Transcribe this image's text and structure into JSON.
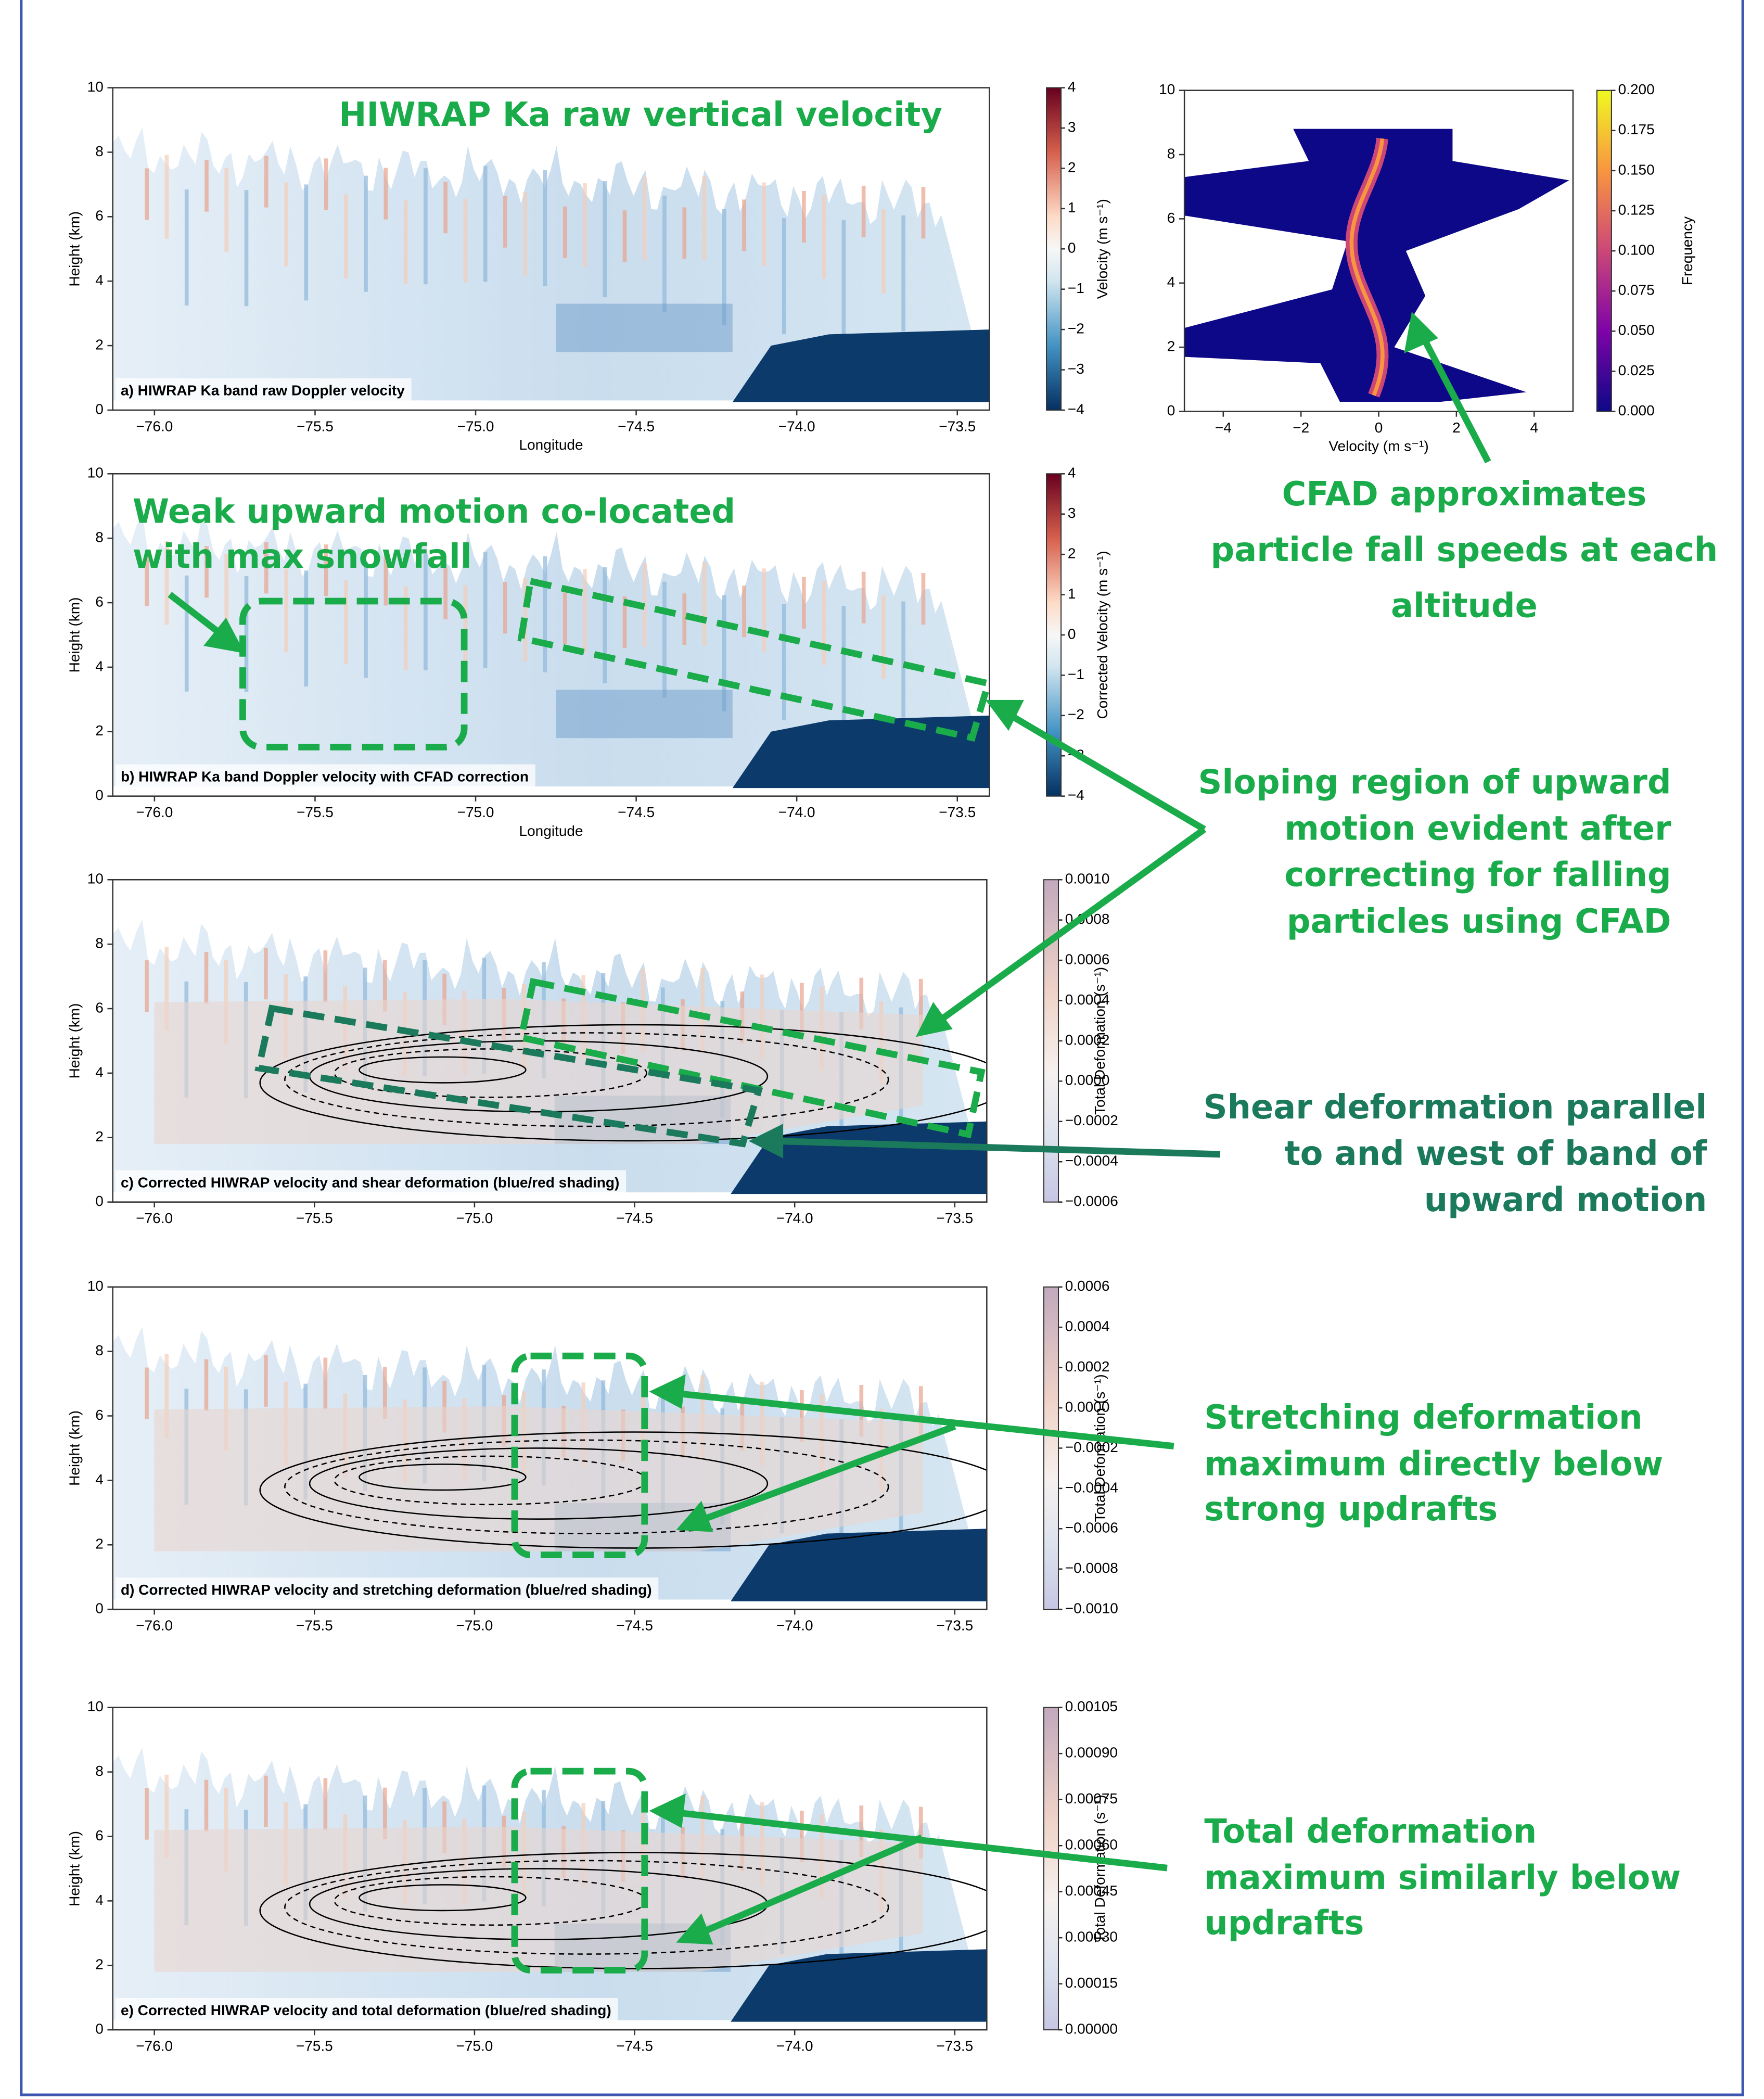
{
  "chart_data": [
    {
      "type": "image",
      "panel_label": "a) HIWRAP Ka band raw Doppler velocity",
      "x_label": "Longitude",
      "y_label": "Height (km)",
      "xlim": [
        -76.13,
        -73.4
      ],
      "xticks": [
        {
          "value": -76,
          "label": "−76.0"
        },
        {
          "value": -75.5,
          "label": "−75.5"
        },
        {
          "value": -75,
          "label": "−75.0"
        },
        {
          "value": -74.5,
          "label": "−74.5"
        },
        {
          "value": -74,
          "label": "−74.0"
        },
        {
          "value": -73.5,
          "label": "−73.5"
        }
      ],
      "ylim": [
        0,
        10
      ],
      "yticks": [
        0,
        2,
        4,
        6,
        8,
        10
      ],
      "colormap": "RdBu_r",
      "colorbar": {
        "label": "Velocity (m s⁻¹)",
        "lim": [
          -4,
          4
        ],
        "ticks": [
          {
            "value": -4,
            "label": "−4"
          },
          {
            "value": -3,
            "label": "−3"
          },
          {
            "value": -2,
            "label": "−2"
          },
          {
            "value": -1,
            "label": "−1"
          },
          0,
          1,
          2,
          3,
          4
        ]
      }
    },
    {
      "type": "cfad",
      "x_label": "Velocity (m s⁻¹)",
      "xlim": [
        -5,
        5
      ],
      "xticks": [
        {
          "value": -4,
          "label": "−4"
        },
        {
          "value": -2,
          "label": "−2"
        },
        0,
        2,
        4
      ],
      "ylim": [
        0,
        10
      ],
      "yticks": [
        0,
        2,
        4,
        6,
        8,
        10
      ],
      "colormap": "plasma",
      "colorbar": {
        "label": "Frequency",
        "lim": [
          0,
          0.2
        ],
        "ticks": [
          {
            "value": 0,
            "label": "0.000"
          },
          {
            "value": 0.025,
            "label": "0.025"
          },
          {
            "value": 0.05,
            "label": "0.050"
          },
          {
            "value": 0.075,
            "label": "0.075"
          },
          {
            "value": 0.1,
            "label": "0.100"
          },
          {
            "value": 0.125,
            "label": "0.125"
          },
          {
            "value": 0.15,
            "label": "0.150"
          },
          {
            "value": 0.175,
            "label": "0.175"
          },
          {
            "value": 0.2,
            "label": "0.200"
          }
        ]
      }
    },
    {
      "type": "image",
      "panel_label": "b) HIWRAP Ka band Doppler velocity with CFAD correction",
      "x_label": "Longitude",
      "y_label": "Height (km)",
      "xlim": [
        -76.13,
        -73.4
      ],
      "xticks": [
        {
          "value": -76,
          "label": "−76.0"
        },
        {
          "value": -75.5,
          "label": "−75.5"
        },
        {
          "value": -75,
          "label": "−75.0"
        },
        {
          "value": -74.5,
          "label": "−74.5"
        },
        {
          "value": -74,
          "label": "−74.0"
        },
        {
          "value": -73.5,
          "label": "−73.5"
        }
      ],
      "ylim": [
        0,
        10
      ],
      "yticks": [
        0,
        2,
        4,
        6,
        8,
        10
      ],
      "colormap": "RdBu_r",
      "colorbar": {
        "label": "Corrected Velocity (m s⁻¹)",
        "lim": [
          -4,
          4
        ],
        "ticks": [
          {
            "value": -4,
            "label": "−4"
          },
          {
            "value": -3,
            "label": "−3"
          },
          {
            "value": -2,
            "label": "−2"
          },
          {
            "value": -1,
            "label": "−1"
          },
          0,
          1,
          2,
          3,
          4
        ]
      }
    },
    {
      "type": "image",
      "panel_label": "c) Corrected HIWRAP velocity and shear deformation (blue/red shading)",
      "y_label": "Height (km)",
      "xlim": [
        -76.13,
        -73.4
      ],
      "xticks": [
        {
          "value": -76,
          "label": "−76.0"
        },
        {
          "value": -75.5,
          "label": "−75.5"
        },
        {
          "value": -75,
          "label": "−75.0"
        },
        {
          "value": -74.5,
          "label": "−74.5"
        },
        {
          "value": -74,
          "label": "−74.0"
        },
        {
          "value": -73.5,
          "label": "−73.5"
        }
      ],
      "ylim": [
        0,
        10
      ],
      "yticks": [
        0,
        2,
        4,
        6,
        8,
        10
      ],
      "colormap": "deformation",
      "colorbar": {
        "label": "Total Deformation (s⁻¹)",
        "lim": [
          -0.0006,
          0.001
        ],
        "ticks": [
          {
            "value": -0.0006,
            "label": "−0.0006"
          },
          {
            "value": -0.0004,
            "label": "−0.0004"
          },
          {
            "value": -0.0002,
            "label": "−0.0002"
          },
          {
            "value": 0,
            "label": "0.0000"
          },
          {
            "value": 0.0002,
            "label": "0.0002"
          },
          {
            "value": 0.0004,
            "label": "0.0004"
          },
          {
            "value": 0.0006,
            "label": "0.0006"
          },
          {
            "value": 0.0008,
            "label": "0.0008"
          },
          {
            "value": 0.001,
            "label": "0.0010"
          }
        ]
      }
    },
    {
      "type": "image",
      "panel_label": "d) Corrected HIWRAP velocity and stretching deformation (blue/red shading)",
      "y_label": "Height (km)",
      "xlim": [
        -76.13,
        -73.4
      ],
      "xticks": [
        {
          "value": -76,
          "label": "−76.0"
        },
        {
          "value": -75.5,
          "label": "−75.5"
        },
        {
          "value": -75,
          "label": "−75.0"
        },
        {
          "value": -74.5,
          "label": "−74.5"
        },
        {
          "value": -74,
          "label": "−74.0"
        },
        {
          "value": -73.5,
          "label": "−73.5"
        }
      ],
      "ylim": [
        0,
        10
      ],
      "yticks": [
        0,
        2,
        4,
        6,
        8,
        10
      ],
      "colormap": "deformation",
      "colorbar": {
        "label": "Total Deformation (s⁻¹)",
        "lim": [
          -0.001,
          0.0006
        ],
        "ticks": [
          {
            "value": -0.001,
            "label": "−0.0010"
          },
          {
            "value": -0.0008,
            "label": "−0.0008"
          },
          {
            "value": -0.0006,
            "label": "−0.0006"
          },
          {
            "value": -0.0004,
            "label": "−0.0004"
          },
          {
            "value": -0.0002,
            "label": "−0.0002"
          },
          {
            "value": 0,
            "label": "0.0000"
          },
          {
            "value": 0.0002,
            "label": "0.0002"
          },
          {
            "value": 0.0004,
            "label": "0.0004"
          },
          {
            "value": 0.0006,
            "label": "0.0006"
          }
        ]
      }
    },
    {
      "type": "image",
      "panel_label": "e) Corrected HIWRAP velocity and total deformation (blue/red shading)",
      "y_label": "Height (km)",
      "xlim": [
        -76.13,
        -73.4
      ],
      "xticks": [
        {
          "value": -76,
          "label": "−76.0"
        },
        {
          "value": -75.5,
          "label": "−75.5"
        },
        {
          "value": -75,
          "label": "−75.0"
        },
        {
          "value": -74.5,
          "label": "−74.5"
        },
        {
          "value": -74,
          "label": "−74.0"
        },
        {
          "value": -73.5,
          "label": "−73.5"
        }
      ],
      "ylim": [
        0,
        10
      ],
      "yticks": [
        0,
        2,
        4,
        6,
        8,
        10
      ],
      "colormap": "deformation",
      "colorbar": {
        "label": "Total Deformation (s⁻¹)",
        "lim": [
          0,
          0.00105
        ],
        "ticks": [
          {
            "value": 0,
            "label": "0.00000"
          },
          {
            "value": 0.00015,
            "label": "0.00015"
          },
          {
            "value": 0.0003,
            "label": "0.00030"
          },
          {
            "value": 0.00045,
            "label": "0.00045"
          },
          {
            "value": 0.0006,
            "label": "0.00060"
          },
          {
            "value": 0.00075,
            "label": "0.00075"
          },
          {
            "value": 0.0009,
            "label": "0.00090"
          },
          {
            "value": 0.00105,
            "label": "0.00105"
          }
        ]
      }
    }
  ],
  "annotations": [
    {
      "lines": [
        "HIWRAP Ka raw vertical velocity"
      ]
    },
    {
      "lines": [
        "Weak upward motion co-located",
        "with max snowfall"
      ]
    },
    {
      "lines": [
        "CFAD approximates",
        "particle fall speeds at each",
        "altitude"
      ]
    },
    {
      "lines": [
        "Sloping region of upward",
        "motion evident after",
        "correcting for falling",
        "particles using CFAD"
      ]
    },
    {
      "lines": [
        "Shear deformation parallel",
        "to and west of band of",
        "upward motion"
      ]
    },
    {
      "lines": [
        "Stretching deformation",
        "maximum directly below",
        "strong updrafts"
      ]
    },
    {
      "lines": [
        "Total deformation",
        "maximum similarly below",
        "updrafts"
      ]
    }
  ]
}
